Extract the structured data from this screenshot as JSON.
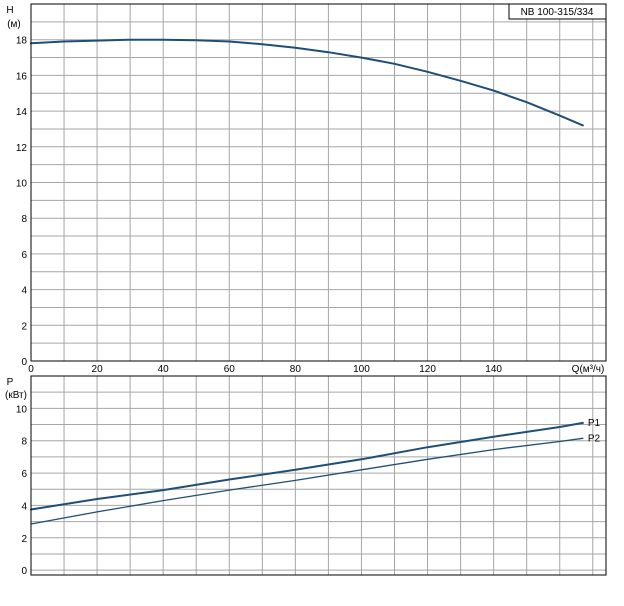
{
  "colors": {
    "curve": "#1f4e79",
    "grid": "#a6a6a6",
    "frame": "#000000",
    "background": "#ffffff"
  },
  "chart_data": [
    {
      "type": "line",
      "title": "NB 100-315/334",
      "ylabel_top": "H",
      "ylabel_unit": "(м)",
      "xlabel": "Q(м³/ч)",
      "xlim": [
        0,
        174
      ],
      "ylim": [
        0,
        20
      ],
      "xticks": [
        0,
        20,
        40,
        60,
        80,
        100,
        120,
        140
      ],
      "yticks": [
        0,
        2,
        4,
        6,
        8,
        10,
        12,
        14,
        16,
        18
      ],
      "grid": true,
      "series": [
        {
          "x": [
            0,
            10,
            20,
            30,
            40,
            50,
            60,
            70,
            80,
            90,
            100,
            110,
            120,
            130,
            140,
            150,
            160,
            167
          ],
          "values": [
            17.8,
            17.9,
            17.95,
            18.0,
            18.0,
            17.97,
            17.9,
            17.75,
            17.55,
            17.3,
            17.0,
            16.65,
            16.2,
            15.7,
            15.15,
            14.5,
            13.75,
            13.2
          ]
        }
      ]
    },
    {
      "type": "line",
      "ylabel_top": "P",
      "ylabel_unit": "(кВт)",
      "xlim": [
        0,
        174
      ],
      "ylim": [
        -0.3,
        12
      ],
      "yticks": [
        0,
        2,
        4,
        6,
        8,
        10
      ],
      "grid": true,
      "series": [
        {
          "name": "P1",
          "x": [
            0,
            20,
            40,
            60,
            80,
            100,
            120,
            140,
            160,
            167
          ],
          "values": [
            3.75,
            4.4,
            4.95,
            5.6,
            6.2,
            6.85,
            7.6,
            8.25,
            8.85,
            9.1
          ]
        },
        {
          "name": "P2",
          "x": [
            0,
            20,
            40,
            60,
            80,
            100,
            120,
            140,
            160,
            167
          ],
          "values": [
            2.85,
            3.6,
            4.3,
            4.95,
            5.55,
            6.2,
            6.85,
            7.45,
            7.95,
            8.15
          ]
        }
      ]
    }
  ]
}
